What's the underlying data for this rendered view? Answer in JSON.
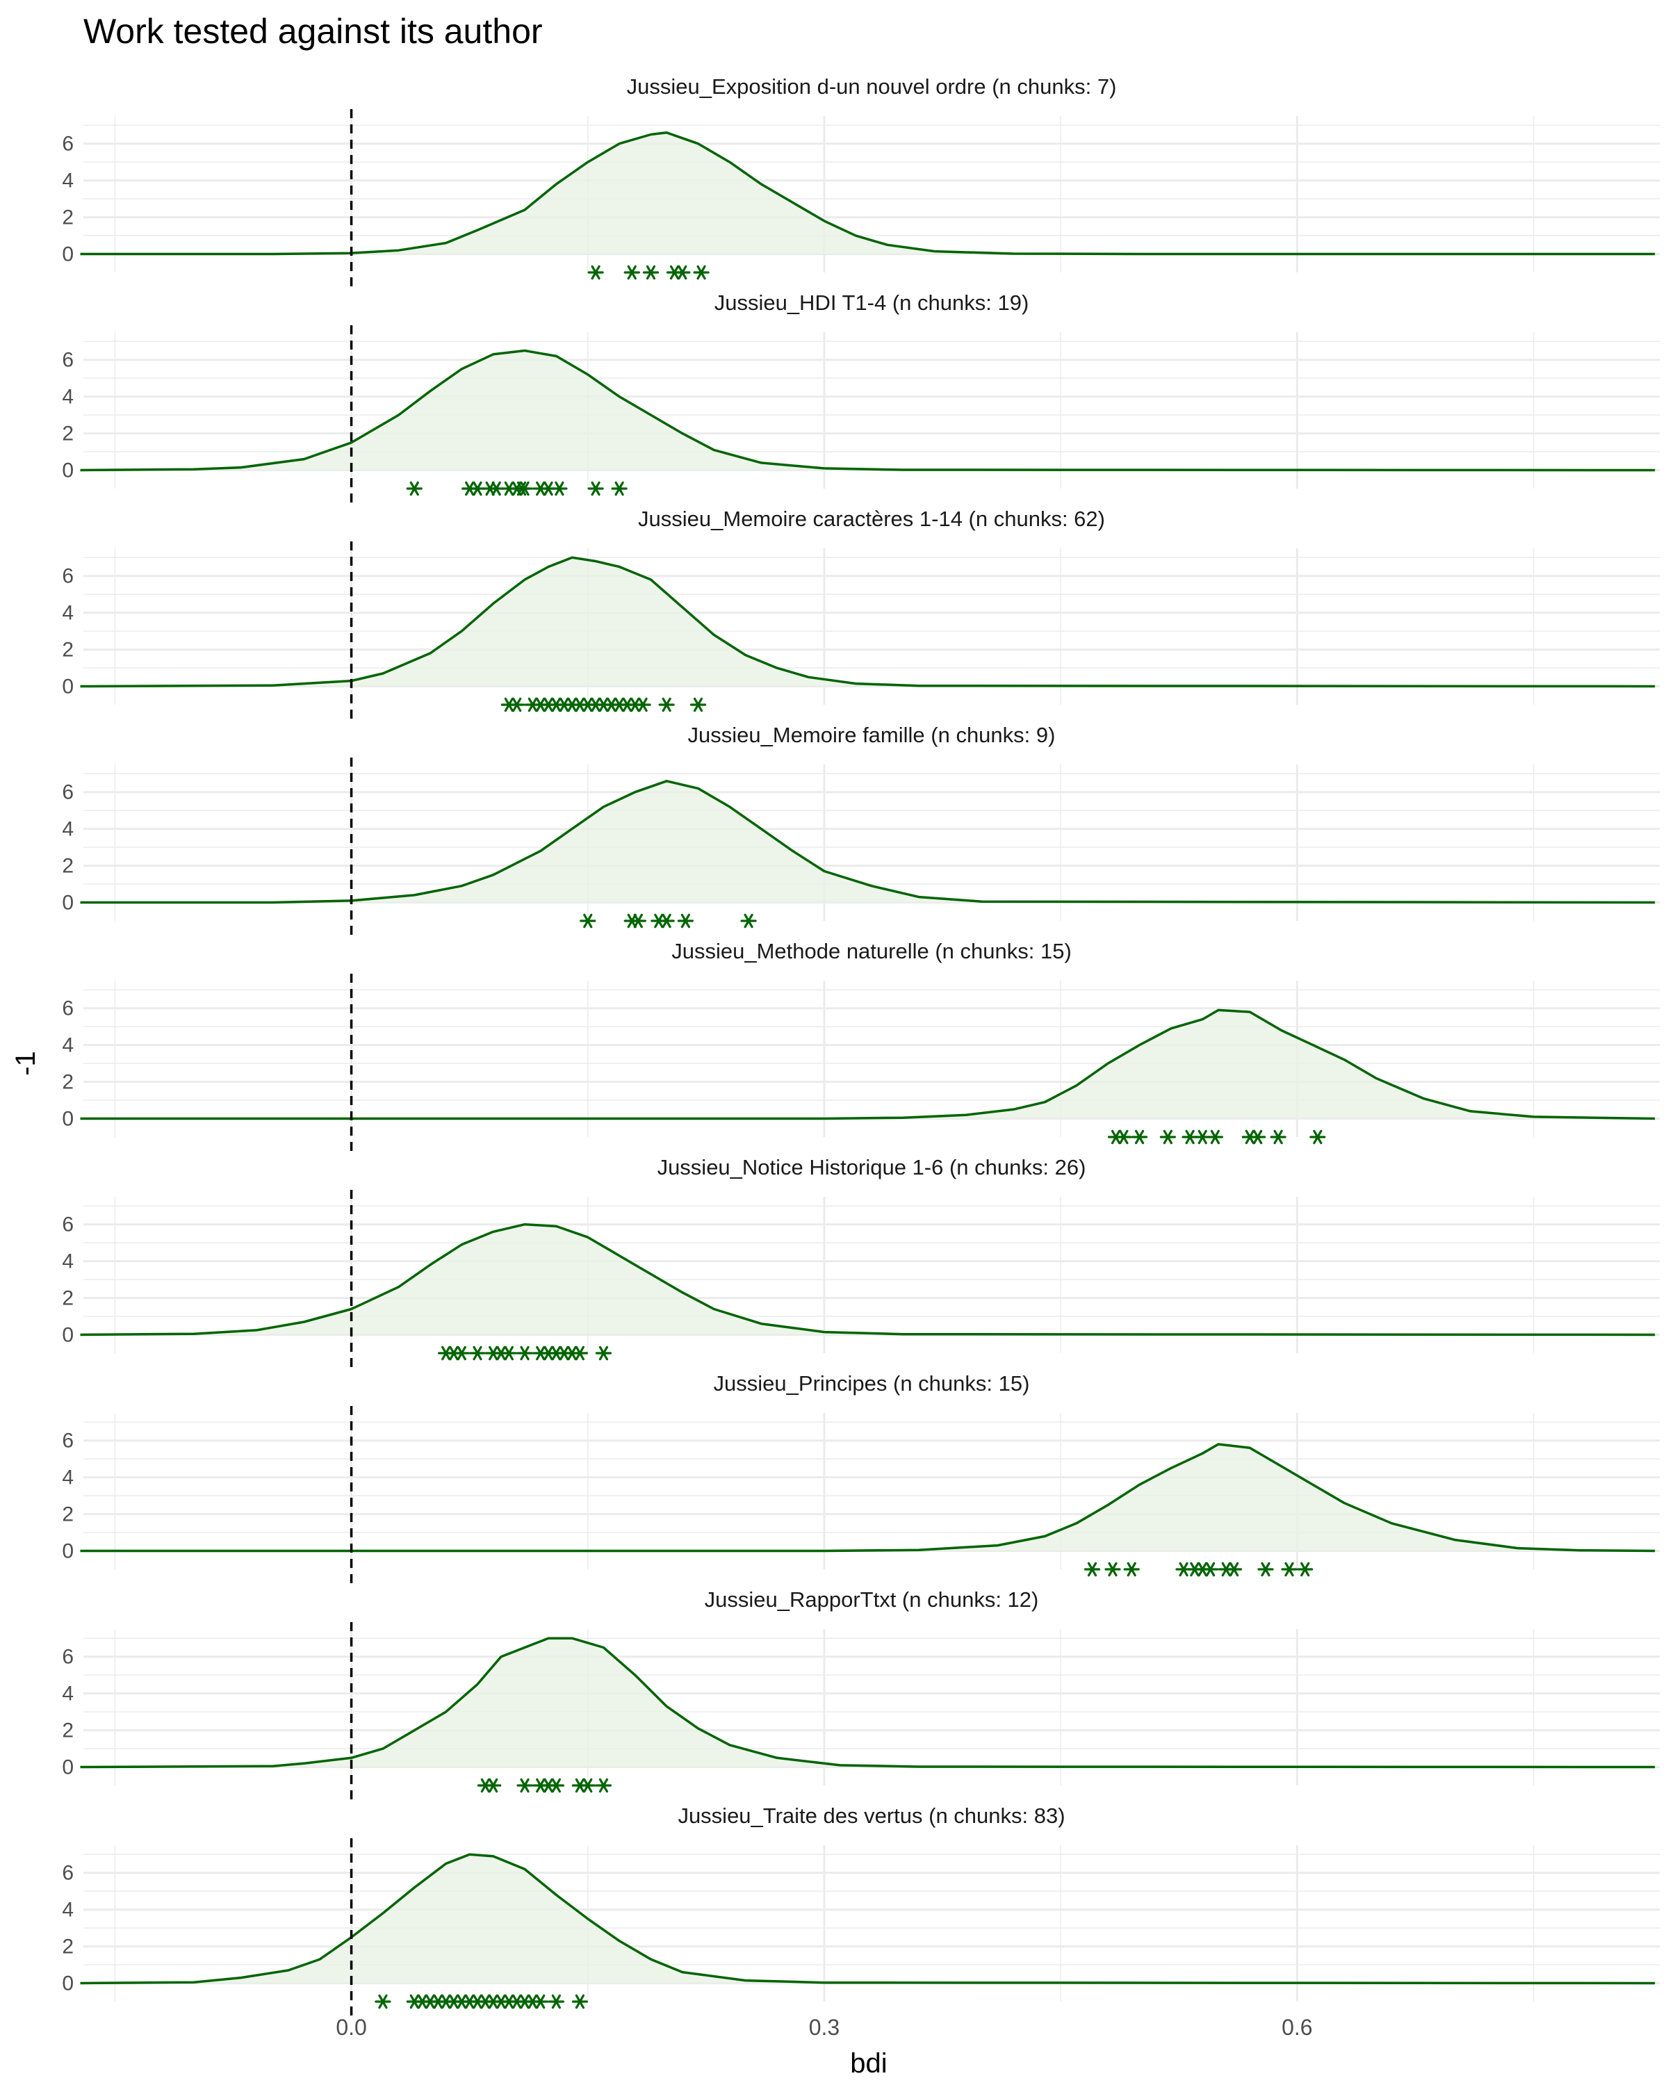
{
  "chart_data": {
    "type": "density",
    "title": "Work tested against its author",
    "xlabel": "bdi",
    "ylabel": "-1",
    "xlim": [
      -0.17,
      0.83
    ],
    "ylim": [
      -1,
      7.5
    ],
    "x_ticks": [
      0.0,
      0.3,
      0.6
    ],
    "x_tick_labels": [
      "0.0",
      "0.3",
      "0.6"
    ],
    "y_ticks": [
      0,
      2,
      4,
      6
    ],
    "y_tick_labels": [
      "0",
      "2",
      "4",
      "6"
    ],
    "reference_line_x": 0,
    "grid": true,
    "colors": {
      "line": "#006400",
      "fill": "#e8f3e6",
      "points": "#006400",
      "ref_line": "#000000",
      "grid": "#ebebeb"
    },
    "panels": [
      {
        "label": "Jussieu_Exposition d-un nouvel ordre (n chunks: 7)",
        "density": [
          [
            -0.172,
            0
          ],
          [
            -0.05,
            0
          ],
          [
            0,
            0.05
          ],
          [
            0.03,
            0.2
          ],
          [
            0.06,
            0.6
          ],
          [
            0.08,
            1.3
          ],
          [
            0.11,
            2.4
          ],
          [
            0.13,
            3.8
          ],
          [
            0.15,
            5.0
          ],
          [
            0.17,
            6.0
          ],
          [
            0.19,
            6.5
          ],
          [
            0.2,
            6.6
          ],
          [
            0.22,
            6.0
          ],
          [
            0.24,
            5.0
          ],
          [
            0.26,
            3.8
          ],
          [
            0.28,
            2.8
          ],
          [
            0.3,
            1.8
          ],
          [
            0.32,
            1.0
          ],
          [
            0.34,
            0.5
          ],
          [
            0.37,
            0.15
          ],
          [
            0.42,
            0.02
          ],
          [
            0.5,
            0
          ],
          [
            0.827,
            0
          ]
        ],
        "points": [
          0.155,
          0.178,
          0.19,
          0.205,
          0.21,
          0.222
        ]
      },
      {
        "label": "Jussieu_HDI T1-4 (n chunks: 19)",
        "density": [
          [
            -0.172,
            0
          ],
          [
            -0.1,
            0.05
          ],
          [
            -0.07,
            0.15
          ],
          [
            -0.03,
            0.6
          ],
          [
            0,
            1.5
          ],
          [
            0.03,
            3.0
          ],
          [
            0.05,
            4.3
          ],
          [
            0.07,
            5.5
          ],
          [
            0.09,
            6.3
          ],
          [
            0.11,
            6.5
          ],
          [
            0.13,
            6.2
          ],
          [
            0.15,
            5.2
          ],
          [
            0.17,
            4.0
          ],
          [
            0.19,
            3.0
          ],
          [
            0.21,
            2.0
          ],
          [
            0.23,
            1.1
          ],
          [
            0.26,
            0.4
          ],
          [
            0.3,
            0.1
          ],
          [
            0.35,
            0.02
          ],
          [
            0.827,
            0
          ]
        ],
        "points": [
          0.04,
          0.075,
          0.08,
          0.088,
          0.092,
          0.1,
          0.105,
          0.108,
          0.11,
          0.12,
          0.125,
          0.132,
          0.155,
          0.17
        ]
      },
      {
        "label": "Jussieu_Memoire caractères 1-14 (n chunks: 62)",
        "density": [
          [
            -0.172,
            0
          ],
          [
            -0.05,
            0.05
          ],
          [
            0,
            0.3
          ],
          [
            0.02,
            0.7
          ],
          [
            0.05,
            1.8
          ],
          [
            0.07,
            3.0
          ],
          [
            0.09,
            4.5
          ],
          [
            0.11,
            5.8
          ],
          [
            0.125,
            6.5
          ],
          [
            0.14,
            7.0
          ],
          [
            0.155,
            6.8
          ],
          [
            0.17,
            6.5
          ],
          [
            0.19,
            5.8
          ],
          [
            0.21,
            4.3
          ],
          [
            0.23,
            2.8
          ],
          [
            0.25,
            1.7
          ],
          [
            0.27,
            1.0
          ],
          [
            0.29,
            0.5
          ],
          [
            0.32,
            0.15
          ],
          [
            0.36,
            0.03
          ],
          [
            0.827,
            0
          ]
        ],
        "points": [
          0.1,
          0.105,
          0.115,
          0.12,
          0.125,
          0.13,
          0.135,
          0.14,
          0.145,
          0.15,
          0.155,
          0.16,
          0.165,
          0.17,
          0.175,
          0.18,
          0.185,
          0.2,
          0.22
        ]
      },
      {
        "label": "Jussieu_Memoire famille (n chunks: 9)",
        "density": [
          [
            -0.172,
            0
          ],
          [
            -0.05,
            0
          ],
          [
            0,
            0.1
          ],
          [
            0.04,
            0.4
          ],
          [
            0.07,
            0.9
          ],
          [
            0.09,
            1.5
          ],
          [
            0.12,
            2.8
          ],
          [
            0.14,
            4.0
          ],
          [
            0.16,
            5.2
          ],
          [
            0.18,
            6.0
          ],
          [
            0.2,
            6.6
          ],
          [
            0.22,
            6.2
          ],
          [
            0.24,
            5.2
          ],
          [
            0.26,
            4.0
          ],
          [
            0.28,
            2.8
          ],
          [
            0.3,
            1.7
          ],
          [
            0.33,
            0.9
          ],
          [
            0.36,
            0.3
          ],
          [
            0.4,
            0.05
          ],
          [
            0.827,
            0
          ]
        ],
        "points": [
          0.15,
          0.178,
          0.182,
          0.195,
          0.2,
          0.212,
          0.252
        ]
      },
      {
        "label": "Jussieu_Methode naturelle (n chunks: 15)",
        "density": [
          [
            -0.172,
            0
          ],
          [
            0.3,
            0
          ],
          [
            0.35,
            0.05
          ],
          [
            0.39,
            0.2
          ],
          [
            0.42,
            0.5
          ],
          [
            0.44,
            0.9
          ],
          [
            0.46,
            1.8
          ],
          [
            0.48,
            3.0
          ],
          [
            0.5,
            4.0
          ],
          [
            0.52,
            4.9
          ],
          [
            0.54,
            5.4
          ],
          [
            0.55,
            5.9
          ],
          [
            0.57,
            5.8
          ],
          [
            0.59,
            4.8
          ],
          [
            0.61,
            4.0
          ],
          [
            0.63,
            3.2
          ],
          [
            0.65,
            2.2
          ],
          [
            0.68,
            1.1
          ],
          [
            0.71,
            0.4
          ],
          [
            0.75,
            0.1
          ],
          [
            0.827,
            0
          ]
        ],
        "points": [
          0.485,
          0.49,
          0.5,
          0.518,
          0.532,
          0.54,
          0.548,
          0.57,
          0.575,
          0.588,
          0.613
        ]
      },
      {
        "label": "Jussieu_Notice Historique 1-6 (n chunks: 26)",
        "density": [
          [
            -0.172,
            0
          ],
          [
            -0.1,
            0.05
          ],
          [
            -0.06,
            0.25
          ],
          [
            -0.03,
            0.7
          ],
          [
            0,
            1.4
          ],
          [
            0.03,
            2.6
          ],
          [
            0.05,
            3.8
          ],
          [
            0.07,
            4.9
          ],
          [
            0.09,
            5.6
          ],
          [
            0.11,
            6.0
          ],
          [
            0.13,
            5.9
          ],
          [
            0.15,
            5.3
          ],
          [
            0.17,
            4.3
          ],
          [
            0.19,
            3.3
          ],
          [
            0.21,
            2.3
          ],
          [
            0.23,
            1.4
          ],
          [
            0.26,
            0.6
          ],
          [
            0.3,
            0.15
          ],
          [
            0.35,
            0.03
          ],
          [
            0.827,
            0
          ]
        ],
        "points": [
          0.06,
          0.065,
          0.07,
          0.08,
          0.09,
          0.095,
          0.1,
          0.11,
          0.12,
          0.125,
          0.13,
          0.135,
          0.14,
          0.145,
          0.16
        ]
      },
      {
        "label": "Jussieu_Principes (n chunks: 15)",
        "density": [
          [
            -0.172,
            0
          ],
          [
            0.3,
            0
          ],
          [
            0.36,
            0.05
          ],
          [
            0.41,
            0.3
          ],
          [
            0.44,
            0.8
          ],
          [
            0.46,
            1.5
          ],
          [
            0.48,
            2.5
          ],
          [
            0.5,
            3.6
          ],
          [
            0.52,
            4.5
          ],
          [
            0.54,
            5.3
          ],
          [
            0.55,
            5.8
          ],
          [
            0.57,
            5.6
          ],
          [
            0.59,
            4.6
          ],
          [
            0.61,
            3.6
          ],
          [
            0.63,
            2.6
          ],
          [
            0.66,
            1.5
          ],
          [
            0.7,
            0.6
          ],
          [
            0.74,
            0.15
          ],
          [
            0.78,
            0.03
          ],
          [
            0.827,
            0
          ]
        ],
        "points": [
          0.47,
          0.483,
          0.495,
          0.528,
          0.535,
          0.54,
          0.545,
          0.555,
          0.56,
          0.58,
          0.595,
          0.605
        ]
      },
      {
        "label": "Jussieu_RapporTtxt (n chunks: 12)",
        "density": [
          [
            -0.172,
            0
          ],
          [
            -0.05,
            0.05
          ],
          [
            -0.03,
            0.2
          ],
          [
            0,
            0.5
          ],
          [
            0.02,
            1.0
          ],
          [
            0.04,
            2.0
          ],
          [
            0.06,
            3.0
          ],
          [
            0.08,
            4.5
          ],
          [
            0.095,
            6.0
          ],
          [
            0.11,
            6.5
          ],
          [
            0.125,
            7.0
          ],
          [
            0.14,
            7.0
          ],
          [
            0.16,
            6.5
          ],
          [
            0.18,
            5.0
          ],
          [
            0.2,
            3.3
          ],
          [
            0.22,
            2.1
          ],
          [
            0.24,
            1.2
          ],
          [
            0.27,
            0.5
          ],
          [
            0.31,
            0.1
          ],
          [
            0.36,
            0.02
          ],
          [
            0.827,
            0
          ]
        ],
        "points": [
          0.085,
          0.09,
          0.11,
          0.12,
          0.125,
          0.13,
          0.145,
          0.15,
          0.16
        ]
      },
      {
        "label": "Jussieu_Traite des vertus (n chunks: 83)",
        "density": [
          [
            -0.172,
            0
          ],
          [
            -0.1,
            0.05
          ],
          [
            -0.07,
            0.3
          ],
          [
            -0.04,
            0.7
          ],
          [
            -0.02,
            1.3
          ],
          [
            0,
            2.5
          ],
          [
            0.02,
            3.8
          ],
          [
            0.04,
            5.2
          ],
          [
            0.06,
            6.5
          ],
          [
            0.075,
            7.0
          ],
          [
            0.09,
            6.9
          ],
          [
            0.11,
            6.2
          ],
          [
            0.13,
            4.8
          ],
          [
            0.15,
            3.5
          ],
          [
            0.17,
            2.3
          ],
          [
            0.19,
            1.3
          ],
          [
            0.21,
            0.6
          ],
          [
            0.25,
            0.15
          ],
          [
            0.3,
            0.03
          ],
          [
            0.827,
            0
          ]
        ],
        "points": [
          0.02,
          0.04,
          0.045,
          0.05,
          0.055,
          0.06,
          0.065,
          0.07,
          0.075,
          0.08,
          0.085,
          0.09,
          0.095,
          0.1,
          0.105,
          0.11,
          0.115,
          0.12,
          0.13,
          0.145
        ]
      }
    ]
  }
}
